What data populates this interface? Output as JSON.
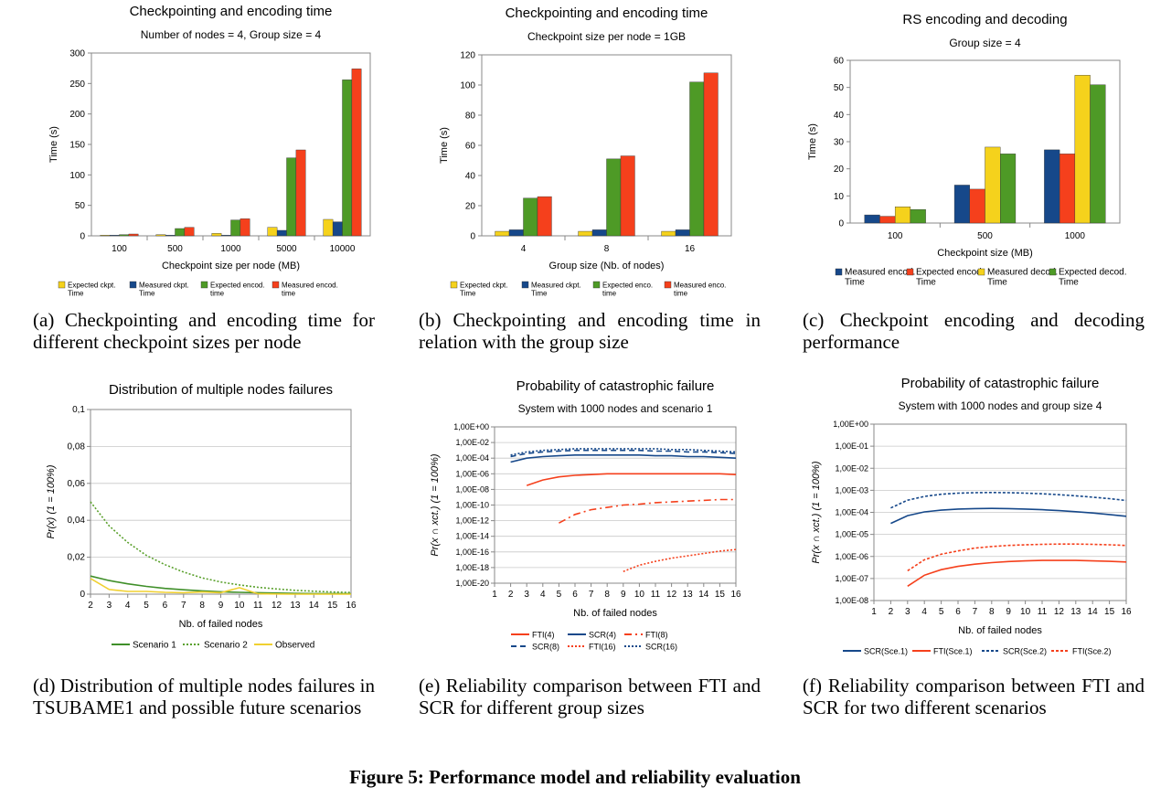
{
  "charts": [
    {
      "title": "Checkpointing and encoding time",
      "subtitle": "Number of nodes = 4, Group size = 4",
      "xlabel": "Checkpoint size per node (MB)",
      "ylabel": "Time (s)",
      "caption": "(a) Checkpointing and encoding time for different checkpoint sizes per node"
    },
    {
      "title": "Checkpointing and encoding time",
      "subtitle": "Checkpoint size per node = 1GB",
      "xlabel": "Group size (Nb. of nodes)",
      "ylabel": "Time (s)",
      "caption": "(b) Checkpointing and encoding time in relation with the group size"
    },
    {
      "title": "RS encoding and decoding",
      "subtitle": "Group size = 4",
      "xlabel": "Checkpoint size (MB)",
      "ylabel": "Time (s)",
      "caption": "(c) Checkpoint encoding and decoding performance"
    },
    {
      "title": "Distribution of multiple nodes failures",
      "subtitle": "",
      "xlabel": "Nb. of failed nodes",
      "ylabel": "Pr(x) (1 = 100%)",
      "caption": "(d) Distribution of multiple nodes failures in TSUBAME1 and possible future scenarios"
    },
    {
      "title": "Probability of catastrophic failure",
      "subtitle": "System with 1000 nodes and scenario 1",
      "xlabel": "Nb. of failed nodes",
      "ylabel": "Pr(x ∩ xct.) (1 = 100%)",
      "caption": "(e) Reliability comparison between FTI and SCR for different group sizes"
    },
    {
      "title": "Probability of catastrophic failure",
      "subtitle": "System with 1000 nodes and group size 4",
      "xlabel": "Nb. of failed nodes",
      "ylabel": "Pr(x ∩ xct.) (1 = 100%)",
      "caption": "(f) Reliability comparison between FTI and SCR for two different scenarios"
    }
  ],
  "figure_caption": "Figure 5: Performance model and reliability evaluation",
  "chart_data": [
    {
      "type": "bar",
      "categories": [
        "100",
        "500",
        "1000",
        "5000",
        "10000"
      ],
      "ylim": [
        0,
        300
      ],
      "yticks": [
        "0",
        "50",
        "100",
        "150",
        "200",
        "250",
        "300"
      ],
      "series": [
        {
          "name": "Expected ckpt. Time",
          "color": "#f5d21c",
          "values": [
            1,
            2,
            4,
            14,
            27
          ]
        },
        {
          "name": "Measured ckpt. Time",
          "color": "#16488a",
          "values": [
            1,
            1,
            1,
            9,
            23
          ]
        },
        {
          "name": "Expected encod. time",
          "color": "#4e9a26",
          "values": [
            2,
            12,
            26,
            128,
            256
          ]
        },
        {
          "name": "Measured encod. time",
          "color": "#f5401c",
          "values": [
            3,
            14,
            28,
            141,
            274
          ]
        }
      ],
      "grid": false,
      "legend": "bottom"
    },
    {
      "type": "bar",
      "categories": [
        "4",
        "8",
        "16"
      ],
      "ylim": [
        0,
        120
      ],
      "yticks": [
        "0",
        "20",
        "40",
        "60",
        "80",
        "100",
        "120"
      ],
      "series": [
        {
          "name": "Expected ckpt. Time",
          "color": "#f5d21c",
          "values": [
            3,
            3,
            3
          ]
        },
        {
          "name": "Measured ckpt. Time",
          "color": "#16488a",
          "values": [
            4,
            4,
            4
          ]
        },
        {
          "name": "Expected enco. time",
          "color": "#4e9a26",
          "values": [
            25,
            51,
            102
          ]
        },
        {
          "name": "Measured enco. time",
          "color": "#f5401c",
          "values": [
            26,
            53,
            108
          ]
        }
      ],
      "grid": false,
      "legend": "bottom"
    },
    {
      "type": "bar",
      "categories": [
        "100",
        "500",
        "1000"
      ],
      "ylim": [
        0,
        60
      ],
      "yticks": [
        "0",
        "10",
        "20",
        "30",
        "40",
        "50",
        "60"
      ],
      "series": [
        {
          "name": "Measured encod. Time",
          "color": "#16488a",
          "values": [
            3,
            14,
            27
          ]
        },
        {
          "name": "Expected encod. Time",
          "color": "#f5401c",
          "values": [
            2.5,
            12.5,
            25.5
          ]
        },
        {
          "name": "Measured decod. Time",
          "color": "#f5d21c",
          "values": [
            6,
            28,
            54.5
          ]
        },
        {
          "name": "Expected decod. Time",
          "color": "#4e9a26",
          "values": [
            5,
            25.5,
            51
          ]
        }
      ],
      "grid": false,
      "legend": "bottom"
    },
    {
      "type": "line",
      "x": [
        2,
        3,
        4,
        5,
        6,
        7,
        8,
        9,
        10,
        11,
        12,
        13,
        14,
        15,
        16
      ],
      "xlim": [
        2,
        16
      ],
      "ylim": [
        0,
        0.1
      ],
      "yticks": [
        "0",
        "0,02",
        "0,04",
        "0,06",
        "0,08",
        "0,1"
      ],
      "series": [
        {
          "name": "Scenario 1",
          "color": "#3f8f29",
          "dash": "",
          "values": [
            0.0098,
            0.0074,
            0.0056,
            0.0042,
            0.0031,
            0.0024,
            0.0018,
            0.0013,
            0.001,
            0.0008,
            0.0006,
            0.0004,
            0.0003,
            0.0003,
            0.0002
          ]
        },
        {
          "name": "Scenario 2",
          "color": "#5aa02c",
          "dash": "2,2",
          "values": [
            0.05,
            0.037,
            0.028,
            0.021,
            0.016,
            0.012,
            0.0088,
            0.0066,
            0.005,
            0.0037,
            0.0028,
            0.0021,
            0.0016,
            0.0012,
            0.0009
          ]
        },
        {
          "name": "Observed",
          "color": "#f0d030",
          "dash": "",
          "values": [
            0.0085,
            0.0025,
            0.0015,
            0.0015,
            0.001,
            0.0008,
            0.0012,
            0.0008,
            0.0035,
            0.0002,
            0.0001,
            0,
            0,
            0,
            0
          ]
        }
      ],
      "grid": true,
      "legend": "bottom"
    },
    {
      "type": "line",
      "yscale": "log",
      "x": [
        2,
        3,
        4,
        5,
        6,
        7,
        8,
        9,
        10,
        11,
        12,
        13,
        14,
        15,
        16
      ],
      "xlim": [
        1,
        16
      ],
      "ylim_exp": [
        -20,
        0
      ],
      "yticks": [
        "1,00E-20",
        "1,00E-18",
        "1,00E-16",
        "1,00E-14",
        "1,00E-12",
        "1,00E-10",
        "1,00E-08",
        "1,00E-06",
        "1,00E-04",
        "1,00E-02",
        "1,00E+00"
      ],
      "series": [
        {
          "name": "FTI(4)",
          "color": "#f5401c",
          "dash": "",
          "values": [
            null,
            -7.5,
            -6.8,
            -6.4,
            -6.2,
            -6.1,
            -6.0,
            -6.0,
            -6.0,
            -6.0,
            -6.0,
            -6.0,
            -6.0,
            -6.0,
            -6.1
          ]
        },
        {
          "name": "SCR(4)",
          "color": "#16488a",
          "dash": "",
          "values": [
            -4.5,
            -4.0,
            -3.8,
            -3.7,
            -3.6,
            -3.6,
            -3.6,
            -3.6,
            -3.6,
            -3.7,
            -3.7,
            -3.8,
            -3.8,
            -3.9,
            -4.0
          ]
        },
        {
          "name": "FTI(8)",
          "color": "#f5401c",
          "dash": "8,4,2,4",
          "values": [
            null,
            null,
            null,
            -12.3,
            -11.2,
            -10.6,
            -10.3,
            -10.0,
            -9.9,
            -9.7,
            -9.6,
            -9.5,
            -9.4,
            -9.3,
            -9.3
          ]
        },
        {
          "name": "SCR(8)",
          "color": "#16488a",
          "dash": "6,4",
          "values": [
            -3.8,
            -3.4,
            -3.2,
            -3.1,
            -3.0,
            -3.0,
            -3.0,
            -3.0,
            -3.0,
            -3.1,
            -3.1,
            -3.2,
            -3.2,
            -3.3,
            -3.4
          ]
        },
        {
          "name": "FTI(16)",
          "color": "#f5401c",
          "dash": "2,2",
          "values": [
            null,
            null,
            null,
            null,
            null,
            null,
            null,
            -18.5,
            -17.7,
            -17.2,
            -16.8,
            -16.5,
            -16.2,
            -15.9,
            -15.7
          ]
        },
        {
          "name": "SCR(16)",
          "color": "#16488a",
          "dash": "2,2",
          "values": [
            -3.6,
            -3.2,
            -3.0,
            -2.9,
            -2.8,
            -2.8,
            -2.8,
            -2.8,
            -2.8,
            -2.8,
            -2.9,
            -2.9,
            -3.0,
            -3.1,
            -3.2
          ]
        }
      ],
      "grid": true,
      "legend": "bottom"
    },
    {
      "type": "line",
      "yscale": "log",
      "x": [
        2,
        3,
        4,
        5,
        6,
        7,
        8,
        9,
        10,
        11,
        12,
        13,
        14,
        15,
        16
      ],
      "xlim": [
        1,
        16
      ],
      "ylim_exp": [
        -8,
        0
      ],
      "yticks": [
        "1,00E-08",
        "1,00E-07",
        "1,00E-06",
        "1,00E-05",
        "1,00E-04",
        "1,00E-03",
        "1,00E-02",
        "1,00E-01",
        "1,00E+00"
      ],
      "series": [
        {
          "name": "SCR(Sce.1)",
          "color": "#16488a",
          "dash": "",
          "values": [
            -4.5,
            -4.15,
            -3.98,
            -3.9,
            -3.85,
            -3.83,
            -3.82,
            -3.83,
            -3.85,
            -3.88,
            -3.92,
            -3.97,
            -4.03,
            -4.1,
            -4.18
          ]
        },
        {
          "name": "FTI(Sce.1)",
          "color": "#f5401c",
          "dash": "",
          "values": [
            null,
            -7.35,
            -6.85,
            -6.6,
            -6.45,
            -6.35,
            -6.28,
            -6.23,
            -6.2,
            -6.18,
            -6.18,
            -6.18,
            -6.2,
            -6.22,
            -6.25
          ]
        },
        {
          "name": "SCR(Sce.2)",
          "color": "#16488a",
          "dash": "3,2",
          "values": [
            -3.8,
            -3.45,
            -3.28,
            -3.18,
            -3.13,
            -3.11,
            -3.1,
            -3.11,
            -3.13,
            -3.16,
            -3.2,
            -3.25,
            -3.31,
            -3.38,
            -3.46
          ]
        },
        {
          "name": "FTI(Sce.2)",
          "color": "#f5401c",
          "dash": "3,2",
          "values": [
            null,
            -6.65,
            -6.15,
            -5.9,
            -5.75,
            -5.62,
            -5.55,
            -5.5,
            -5.47,
            -5.45,
            -5.44,
            -5.44,
            -5.45,
            -5.47,
            -5.5
          ]
        }
      ],
      "grid": true,
      "legend": "bottom"
    }
  ]
}
